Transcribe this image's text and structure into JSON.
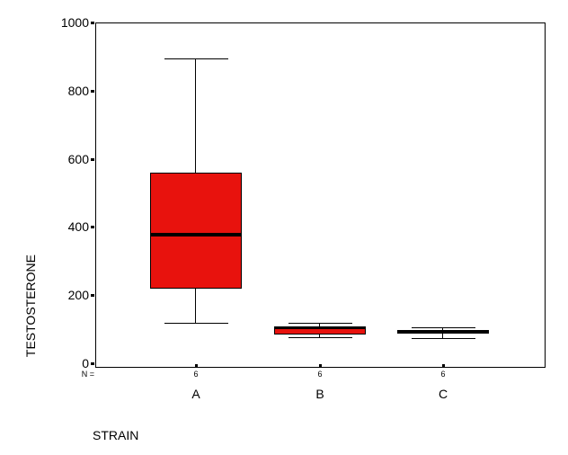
{
  "chart_data": {
    "type": "box",
    "title": "",
    "ylabel": "TESTOSTERONE",
    "xlabel": "STRAIN",
    "ylim": [
      0,
      1000
    ],
    "yticks": [
      0,
      200,
      400,
      600,
      800,
      1000
    ],
    "n_prefix": "N =",
    "categories": [
      "A",
      "B",
      "C"
    ],
    "series": [
      {
        "category": "A",
        "n": "6",
        "min": 120,
        "q1": 220,
        "median": 378,
        "q3": 560,
        "max": 895
      },
      {
        "category": "B",
        "n": "6",
        "min": 76,
        "q1": 85,
        "median": 104,
        "q3": 108,
        "max": 118
      },
      {
        "category": "C",
        "n": "6",
        "min": 74,
        "q1": 88,
        "median": 93,
        "q3": 97,
        "max": 105
      }
    ],
    "colors": {
      "box_fill": "#E8120D",
      "line": "#000000",
      "background": "#FFFFFF"
    },
    "legend": "none",
    "grid": false
  }
}
